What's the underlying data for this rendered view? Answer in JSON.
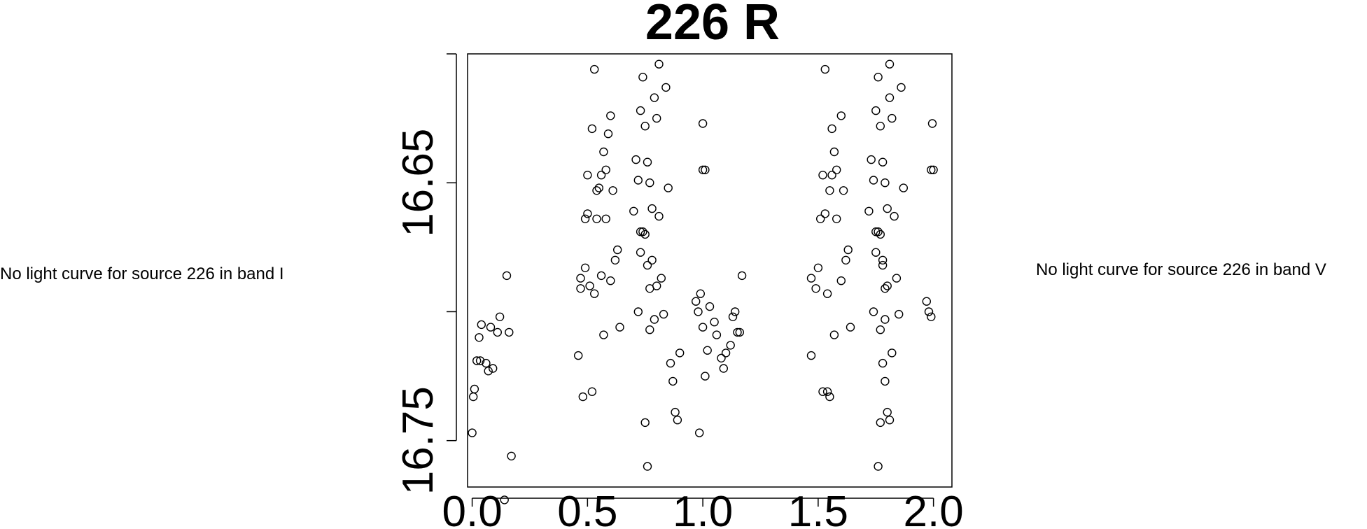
{
  "notes": {
    "left": "No light curve for source 226 in band I",
    "right": "No light curve for source 226 in band V"
  },
  "chart_data": {
    "type": "scatter",
    "title": "226 R",
    "xlabel": "",
    "ylabel": "",
    "xlim": [
      -0.02,
      2.08
    ],
    "ylim": [
      16.768,
      16.6
    ],
    "y_inverted": true,
    "x_ticks": [
      0.0,
      0.5,
      1.0,
      1.5,
      2.0
    ],
    "x_tick_labels": [
      "0.0",
      "0.5",
      "1.0",
      "1.5",
      "2.0"
    ],
    "y_ticks": [
      16.6,
      16.65,
      16.7,
      16.75
    ],
    "y_tick_labels": [
      "",
      "16.65",
      "",
      "16.75"
    ],
    "marker": "open-circle",
    "grid": false,
    "series": [
      {
        "points": [
          [
            0.0,
            16.747
          ],
          [
            0.005,
            16.733
          ],
          [
            0.01,
            16.73
          ],
          [
            0.02,
            16.719
          ],
          [
            0.035,
            16.719
          ],
          [
            0.03,
            16.71
          ],
          [
            0.04,
            16.705
          ],
          [
            0.06,
            16.72
          ],
          [
            0.07,
            16.723
          ],
          [
            0.08,
            16.706
          ],
          [
            0.09,
            16.722
          ],
          [
            0.11,
            16.708
          ],
          [
            0.12,
            16.702
          ],
          [
            0.14,
            16.773
          ],
          [
            0.15,
            16.686
          ],
          [
            0.16,
            16.708
          ],
          [
            0.17,
            16.756
          ],
          [
            0.46,
            16.717
          ],
          [
            0.47,
            16.687
          ],
          [
            0.47,
            16.691
          ],
          [
            0.48,
            16.733
          ],
          [
            0.49,
            16.664
          ],
          [
            0.49,
            16.683
          ],
          [
            0.5,
            16.647
          ],
          [
            0.5,
            16.662
          ],
          [
            0.51,
            16.69
          ],
          [
            0.52,
            16.731
          ],
          [
            0.52,
            16.629
          ],
          [
            0.53,
            16.693
          ],
          [
            0.54,
            16.664
          ],
          [
            0.54,
            16.653
          ],
          [
            0.55,
            16.652
          ],
          [
            0.56,
            16.647
          ],
          [
            0.56,
            16.686
          ],
          [
            0.57,
            16.709
          ],
          [
            0.57,
            16.638
          ],
          [
            0.58,
            16.645
          ],
          [
            0.58,
            16.664
          ],
          [
            0.59,
            16.631
          ],
          [
            0.6,
            16.624
          ],
          [
            0.6,
            16.688
          ],
          [
            0.61,
            16.653
          ],
          [
            0.62,
            16.68
          ],
          [
            0.63,
            16.676
          ],
          [
            0.64,
            16.706
          ],
          [
            0.7,
            16.661
          ],
          [
            0.71,
            16.641
          ],
          [
            0.72,
            16.649
          ],
          [
            0.73,
            16.669
          ],
          [
            0.73,
            16.622
          ],
          [
            0.74,
            16.609
          ],
          [
            0.75,
            16.628
          ],
          [
            0.76,
            16.642
          ],
          [
            0.77,
            16.65
          ],
          [
            0.78,
            16.66
          ],
          [
            0.79,
            16.617
          ],
          [
            0.8,
            16.625
          ],
          [
            0.81,
            16.663
          ],
          [
            0.82,
            16.687
          ],
          [
            0.83,
            16.701
          ],
          [
            0.84,
            16.613
          ],
          [
            0.85,
            16.652
          ],
          [
            0.86,
            16.72
          ],
          [
            0.87,
            16.727
          ],
          [
            0.88,
            16.739
          ],
          [
            0.89,
            16.742
          ],
          [
            0.9,
            16.716
          ],
          [
            0.75,
            16.743
          ],
          [
            0.76,
            16.76
          ],
          [
            0.77,
            16.707
          ],
          [
            0.78,
            16.68
          ],
          [
            0.79,
            16.703
          ],
          [
            0.8,
            16.69
          ],
          [
            0.73,
            16.677
          ],
          [
            0.74,
            16.669
          ],
          [
            0.75,
            16.67
          ],
          [
            0.76,
            16.682
          ],
          [
            0.77,
            16.691
          ],
          [
            0.72,
            16.7
          ],
          [
            0.97,
            16.696
          ],
          [
            0.98,
            16.7
          ],
          [
            0.99,
            16.693
          ],
          [
            1.0,
            16.706
          ],
          [
            1.01,
            16.725
          ],
          [
            1.02,
            16.715
          ],
          [
            1.03,
            16.698
          ],
          [
            1.05,
            16.704
          ],
          [
            1.06,
            16.709
          ],
          [
            1.08,
            16.718
          ],
          [
            1.09,
            16.722
          ],
          [
            1.1,
            16.716
          ],
          [
            1.12,
            16.713
          ],
          [
            1.13,
            16.702
          ],
          [
            1.14,
            16.7
          ],
          [
            1.15,
            16.708
          ],
          [
            1.16,
            16.708
          ],
          [
            1.17,
            16.686
          ],
          [
            1.0,
            16.645
          ],
          [
            1.01,
            16.645
          ],
          [
            1.0,
            16.627
          ],
          [
            0.985,
            16.747
          ],
          [
            1.47,
            16.717
          ],
          [
            1.47,
            16.687
          ],
          [
            1.49,
            16.691
          ],
          [
            1.5,
            16.683
          ],
          [
            1.51,
            16.664
          ],
          [
            1.52,
            16.731
          ],
          [
            1.52,
            16.647
          ],
          [
            1.53,
            16.662
          ],
          [
            1.54,
            16.693
          ],
          [
            1.55,
            16.653
          ],
          [
            1.56,
            16.647
          ],
          [
            1.56,
            16.629
          ],
          [
            1.57,
            16.709
          ],
          [
            1.57,
            16.638
          ],
          [
            1.58,
            16.645
          ],
          [
            1.58,
            16.664
          ],
          [
            1.6,
            16.624
          ],
          [
            1.6,
            16.688
          ],
          [
            1.61,
            16.653
          ],
          [
            1.62,
            16.68
          ],
          [
            1.63,
            16.676
          ],
          [
            1.64,
            16.706
          ],
          [
            1.72,
            16.661
          ],
          [
            1.73,
            16.641
          ],
          [
            1.74,
            16.649
          ],
          [
            1.75,
            16.669
          ],
          [
            1.75,
            16.622
          ],
          [
            1.76,
            16.609
          ],
          [
            1.77,
            16.628
          ],
          [
            1.78,
            16.642
          ],
          [
            1.79,
            16.65
          ],
          [
            1.8,
            16.66
          ],
          [
            1.81,
            16.617
          ],
          [
            1.82,
            16.625
          ],
          [
            1.83,
            16.663
          ],
          [
            1.84,
            16.687
          ],
          [
            1.85,
            16.701
          ],
          [
            1.86,
            16.613
          ],
          [
            1.87,
            16.652
          ],
          [
            1.78,
            16.72
          ],
          [
            1.79,
            16.727
          ],
          [
            1.8,
            16.739
          ],
          [
            1.81,
            16.742
          ],
          [
            1.82,
            16.716
          ],
          [
            1.77,
            16.743
          ],
          [
            1.76,
            16.76
          ],
          [
            1.77,
            16.707
          ],
          [
            1.78,
            16.68
          ],
          [
            1.79,
            16.703
          ],
          [
            1.8,
            16.69
          ],
          [
            1.75,
            16.677
          ],
          [
            1.76,
            16.669
          ],
          [
            1.77,
            16.67
          ],
          [
            1.78,
            16.682
          ],
          [
            1.79,
            16.691
          ],
          [
            1.74,
            16.7
          ],
          [
            1.97,
            16.696
          ],
          [
            1.98,
            16.7
          ],
          [
            1.99,
            16.702
          ],
          [
            1.99,
            16.645
          ],
          [
            2.0,
            16.645
          ],
          [
            1.995,
            16.627
          ],
          [
            1.54,
            16.731
          ],
          [
            1.55,
            16.733
          ],
          [
            1.53,
            16.606
          ],
          [
            1.81,
            16.604
          ],
          [
            0.53,
            16.606
          ],
          [
            0.81,
            16.604
          ]
        ]
      }
    ]
  }
}
